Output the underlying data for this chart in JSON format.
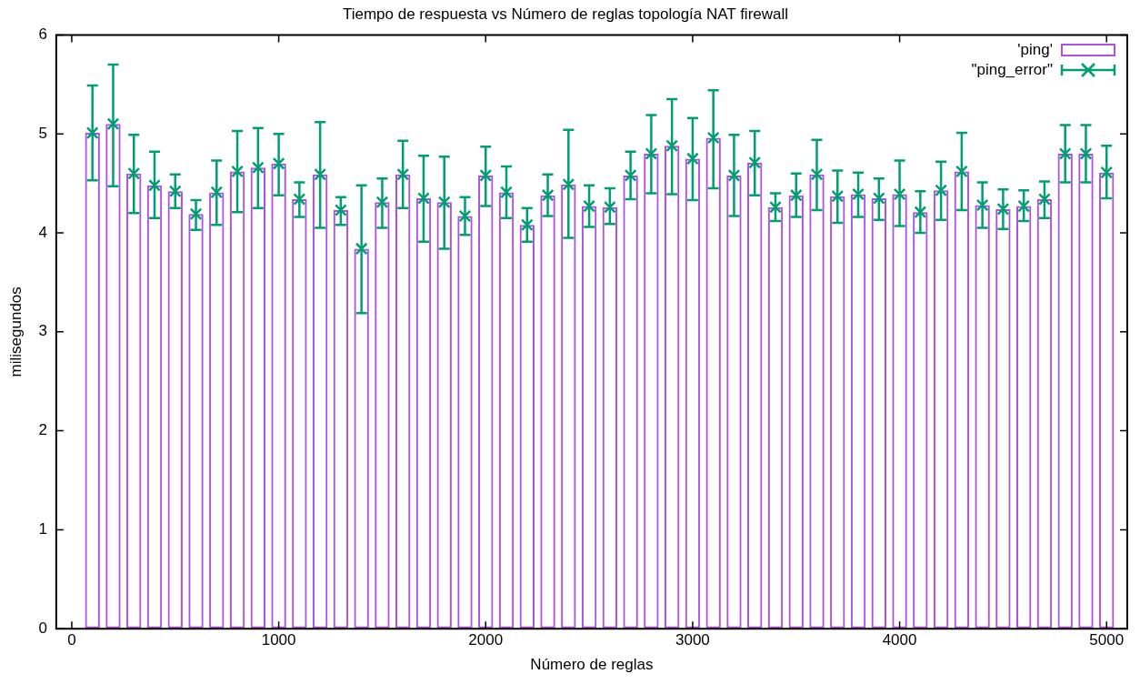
{
  "chart_data": {
    "type": "bar",
    "title": "Tiempo de respuesta vs Número de reglas topología NAT firewall",
    "xlabel": "Número de reglas",
    "ylabel": "milisegundos",
    "x": [
      100,
      200,
      300,
      400,
      500,
      600,
      700,
      800,
      900,
      1000,
      1100,
      1200,
      1300,
      1400,
      1500,
      1600,
      1700,
      1800,
      1900,
      2000,
      2100,
      2200,
      2300,
      2400,
      2500,
      2600,
      2700,
      2800,
      2900,
      3000,
      3100,
      3200,
      3300,
      3400,
      3500,
      3600,
      3700,
      3800,
      3900,
      4000,
      4100,
      4200,
      4300,
      4400,
      4500,
      4600,
      4700,
      4800,
      4900,
      5000
    ],
    "xlim": [
      -75,
      5100
    ],
    "xticks": [
      0,
      1000,
      2000,
      3000,
      4000,
      5000
    ],
    "ylim": [
      0,
      6
    ],
    "yticks": [
      0,
      1,
      2,
      3,
      4,
      5,
      6
    ],
    "grid": false,
    "legend": "top right",
    "series": [
      {
        "name": "'ping'",
        "color": "#b04ee6",
        "values": [
          5.01,
          5.1,
          4.6,
          4.48,
          4.42,
          4.19,
          4.41,
          4.62,
          4.66,
          4.7,
          4.34,
          4.59,
          4.23,
          3.84,
          4.31,
          4.59,
          4.35,
          4.31,
          4.17,
          4.58,
          4.41,
          4.08,
          4.38,
          4.49,
          4.27,
          4.26,
          4.58,
          4.8,
          4.88,
          4.75,
          4.96,
          4.58,
          4.71,
          4.26,
          4.38,
          4.59,
          4.37,
          4.39,
          4.35,
          4.39,
          4.21,
          4.43,
          4.62,
          4.28,
          4.24,
          4.27,
          4.34,
          4.8,
          4.8,
          4.61
        ]
      },
      {
        "type": "scatter",
        "name": "\"ping_error\"",
        "color": "#009e73",
        "marker": "cross",
        "values": [
          5.01,
          5.1,
          4.6,
          4.48,
          4.42,
          4.19,
          4.41,
          4.62,
          4.66,
          4.7,
          4.34,
          4.59,
          4.23,
          3.84,
          4.31,
          4.59,
          4.35,
          4.31,
          4.17,
          4.58,
          4.41,
          4.08,
          4.38,
          4.49,
          4.27,
          4.26,
          4.58,
          4.8,
          4.88,
          4.75,
          4.96,
          4.58,
          4.71,
          4.26,
          4.38,
          4.59,
          4.37,
          4.39,
          4.35,
          4.39,
          4.21,
          4.43,
          4.62,
          4.28,
          4.24,
          4.27,
          4.34,
          4.8,
          4.8,
          4.61
        ],
        "errors": [
          [
            4.53,
            5.49
          ],
          [
            4.47,
            5.7
          ],
          [
            4.2,
            4.99
          ],
          [
            4.15,
            4.82
          ],
          [
            4.25,
            4.59
          ],
          [
            4.03,
            4.33
          ],
          [
            4.08,
            4.73
          ],
          [
            4.21,
            5.03
          ],
          [
            4.25,
            5.06
          ],
          [
            4.38,
            5.0
          ],
          [
            4.16,
            4.51
          ],
          [
            4.05,
            5.12
          ],
          [
            4.08,
            4.36
          ],
          [
            3.19,
            4.48
          ],
          [
            4.05,
            4.55
          ],
          [
            4.25,
            4.93
          ],
          [
            3.91,
            4.78
          ],
          [
            3.84,
            4.77
          ],
          [
            3.98,
            4.36
          ],
          [
            4.27,
            4.87
          ],
          [
            4.15,
            4.67
          ],
          [
            3.91,
            4.25
          ],
          [
            4.17,
            4.59
          ],
          [
            3.95,
            5.04
          ],
          [
            4.06,
            4.48
          ],
          [
            4.09,
            4.45
          ],
          [
            4.34,
            4.82
          ],
          [
            4.4,
            5.19
          ],
          [
            4.39,
            5.35
          ],
          [
            4.33,
            5.16
          ],
          [
            4.45,
            5.44
          ],
          [
            4.17,
            4.99
          ],
          [
            4.38,
            5.03
          ],
          [
            4.12,
            4.4
          ],
          [
            4.16,
            4.6
          ],
          [
            4.23,
            4.94
          ],
          [
            4.1,
            4.63
          ],
          [
            4.16,
            4.61
          ],
          [
            4.13,
            4.55
          ],
          [
            4.07,
            4.73
          ],
          [
            4.0,
            4.42
          ],
          [
            4.13,
            4.72
          ],
          [
            4.23,
            5.01
          ],
          [
            4.05,
            4.51
          ],
          [
            4.04,
            4.44
          ],
          [
            4.12,
            4.43
          ],
          [
            4.15,
            4.52
          ],
          [
            4.51,
            5.09
          ],
          [
            4.51,
            5.09
          ],
          [
            4.35,
            4.88
          ]
        ]
      }
    ]
  }
}
